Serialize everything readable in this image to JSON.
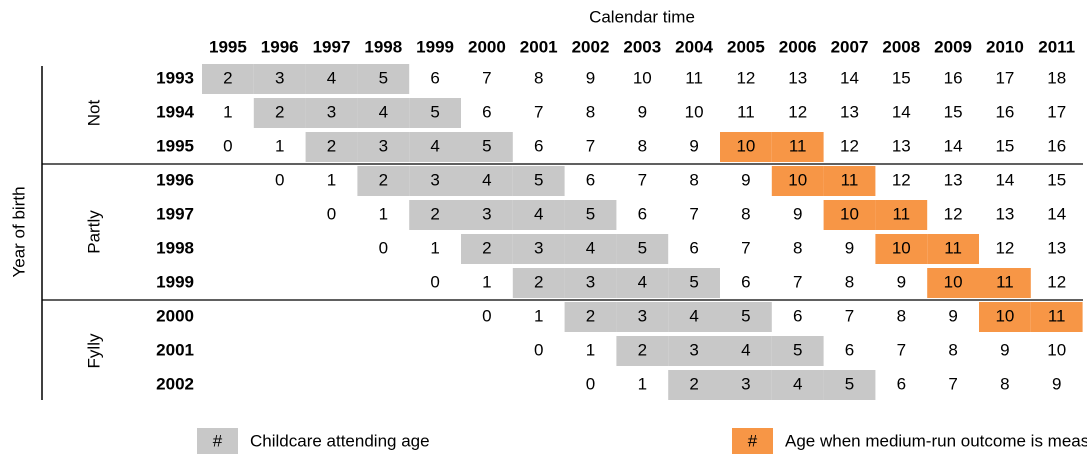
{
  "table": {
    "column_title": "Calendar time",
    "row_title": "Year of birth",
    "columns": [
      "1995",
      "1996",
      "1997",
      "1998",
      "1999",
      "2000",
      "2001",
      "2002",
      "2003",
      "2004",
      "2005",
      "2006",
      "2007",
      "2008",
      "2009",
      "2010",
      "2011"
    ],
    "column_colors": [
      "#000000",
      "#000000",
      "#000000",
      "#000000",
      "#000000",
      "#000000",
      "#e00000",
      "#000000",
      "#000000",
      "#000000",
      "#000000",
      "#000000",
      "#000000",
      "#000000",
      "#000000",
      "#000000",
      "#000000"
    ],
    "groups": [
      {
        "label": "Not",
        "rows": [
          {
            "year": "1993",
            "cells": [
              2,
              3,
              4,
              5,
              6,
              7,
              8,
              9,
              10,
              11,
              12,
              13,
              14,
              15,
              16,
              17,
              18
            ],
            "fills": [
              "#c8c8c8",
              "#c8c8c8",
              "#c8c8c8",
              "#c8c8c8",
              null,
              null,
              null,
              null,
              null,
              null,
              null,
              null,
              null,
              null,
              null,
              null,
              null
            ]
          },
          {
            "year": "1994",
            "cells": [
              1,
              2,
              3,
              4,
              5,
              6,
              7,
              8,
              9,
              10,
              11,
              12,
              13,
              14,
              15,
              16,
              17
            ],
            "fills": [
              null,
              "#c8c8c8",
              "#c8c8c8",
              "#c8c8c8",
              "#c8c8c8",
              null,
              null,
              null,
              null,
              null,
              null,
              null,
              null,
              null,
              null,
              null,
              null
            ]
          },
          {
            "year": "1995",
            "cells": [
              0,
              1,
              2,
              3,
              4,
              5,
              6,
              7,
              8,
              9,
              10,
              11,
              12,
              13,
              14,
              15,
              16
            ],
            "fills": [
              null,
              null,
              "#c8c8c8",
              "#c8c8c8",
              "#c8c8c8",
              "#c8c8c8",
              null,
              null,
              null,
              null,
              "#f79646",
              "#f79646",
              null,
              null,
              null,
              null,
              null
            ]
          }
        ]
      },
      {
        "label": "Partly",
        "rows": [
          {
            "year": "1996",
            "cells": [
              null,
              0,
              1,
              2,
              3,
              4,
              5,
              6,
              7,
              8,
              9,
              10,
              11,
              12,
              13,
              14,
              15
            ],
            "fills": [
              null,
              null,
              null,
              "#c8c8c8",
              "#c8c8c8",
              "#c8c8c8",
              "#c8c8c8",
              null,
              null,
              null,
              null,
              "#f79646",
              "#f79646",
              null,
              null,
              null,
              null
            ]
          },
          {
            "year": "1997",
            "cells": [
              null,
              null,
              0,
              1,
              2,
              3,
              4,
              5,
              6,
              7,
              8,
              9,
              10,
              11,
              12,
              13,
              14
            ],
            "fills": [
              null,
              null,
              null,
              null,
              "#c8c8c8",
              "#c8c8c8",
              "#c8c8c8",
              "#c8c8c8",
              null,
              null,
              null,
              null,
              "#f79646",
              "#f79646",
              null,
              null,
              null
            ]
          },
          {
            "year": "1998",
            "cells": [
              null,
              null,
              null,
              0,
              1,
              2,
              3,
              4,
              5,
              6,
              7,
              8,
              9,
              10,
              11,
              12,
              13
            ],
            "fills": [
              null,
              null,
              null,
              null,
              null,
              "#c8c8c8",
              "#c8c8c8",
              "#c8c8c8",
              "#c8c8c8",
              null,
              null,
              null,
              null,
              "#f79646",
              "#f79646",
              null,
              null
            ]
          },
          {
            "year": "1999",
            "cells": [
              null,
              null,
              null,
              null,
              0,
              1,
              2,
              3,
              4,
              5,
              6,
              7,
              8,
              9,
              10,
              11,
              12
            ],
            "fills": [
              null,
              null,
              null,
              null,
              null,
              null,
              "#c8c8c8",
              "#c8c8c8",
              "#c8c8c8",
              "#c8c8c8",
              null,
              null,
              null,
              null,
              "#f79646",
              "#f79646",
              null
            ]
          }
        ]
      },
      {
        "label": "Fylly",
        "rows": [
          {
            "year": "2000",
            "cells": [
              null,
              null,
              null,
              null,
              null,
              0,
              1,
              2,
              3,
              4,
              5,
              6,
              7,
              8,
              9,
              10,
              11
            ],
            "fills": [
              null,
              null,
              null,
              null,
              null,
              null,
              null,
              "#c8c8c8",
              "#c8c8c8",
              "#c8c8c8",
              "#c8c8c8",
              null,
              null,
              null,
              null,
              "#f79646",
              "#f79646"
            ]
          },
          {
            "year": "2001",
            "cells": [
              null,
              null,
              null,
              null,
              null,
              null,
              0,
              1,
              2,
              3,
              4,
              5,
              6,
              7,
              8,
              9,
              10
            ],
            "fills": [
              null,
              null,
              null,
              null,
              null,
              null,
              null,
              null,
              "#c8c8c8",
              "#c8c8c8",
              "#c8c8c8",
              "#c8c8c8",
              null,
              null,
              null,
              null,
              null
            ]
          },
          {
            "year": "2002",
            "cells": [
              null,
              null,
              null,
              null,
              null,
              null,
              null,
              0,
              1,
              2,
              3,
              4,
              5,
              6,
              7,
              8,
              9
            ],
            "fills": [
              null,
              null,
              null,
              null,
              null,
              null,
              null,
              null,
              null,
              "#c8c8c8",
              "#c8c8c8",
              "#c8c8c8",
              "#c8c8c8",
              null,
              null,
              null,
              null
            ]
          }
        ]
      }
    ],
    "legend": [
      {
        "symbol": "#",
        "label": "Childcare attending age",
        "color": "#c8c8c8"
      },
      {
        "symbol": "#",
        "label": "Age when medium-run outcome is measured",
        "color": "#f79646"
      }
    ]
  }
}
